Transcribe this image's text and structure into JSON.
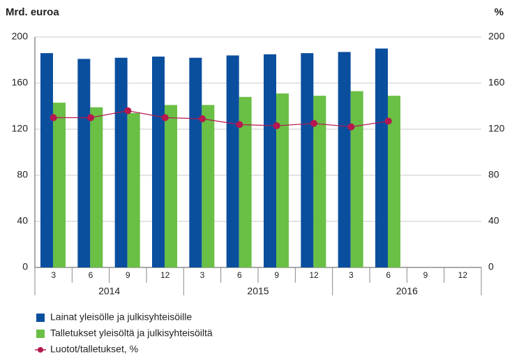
{
  "chart_data": {
    "type": "bar",
    "y_label": "Mrd. euroa",
    "y2_label": "%",
    "categories": [
      "3",
      "6",
      "9",
      "12",
      "3",
      "6",
      "9",
      "12",
      "3",
      "6",
      "9",
      "12"
    ],
    "years": [
      "2014",
      "2015",
      "2016"
    ],
    "series": [
      {
        "name": "Lainat yleisölle ja julkisyhteisöille",
        "color": "#0a4f9e",
        "type": "bar",
        "values": [
          186,
          181,
          182,
          183,
          182,
          184,
          185,
          186,
          187,
          190,
          null,
          null
        ]
      },
      {
        "name": "Talletukset yleisöltä ja julkisyhteisöiltä",
        "color": "#6abf45",
        "type": "bar",
        "values": [
          143,
          139,
          134,
          141,
          141,
          148,
          151,
          149,
          153,
          149,
          null,
          null
        ]
      },
      {
        "name": "Luotot/talletukset, %",
        "color": "#b5174f",
        "type": "line",
        "axis": "y2",
        "values": [
          130,
          130,
          136,
          130,
          129,
          124,
          123,
          125,
          122,
          127,
          null,
          null
        ]
      }
    ],
    "ylim": [
      0,
      200
    ],
    "yticks": [
      0,
      40,
      80,
      120,
      160,
      200
    ],
    "y2lim": [
      0,
      200
    ],
    "y2ticks": [
      0,
      40,
      80,
      120,
      160,
      200
    ],
    "grid": true
  }
}
